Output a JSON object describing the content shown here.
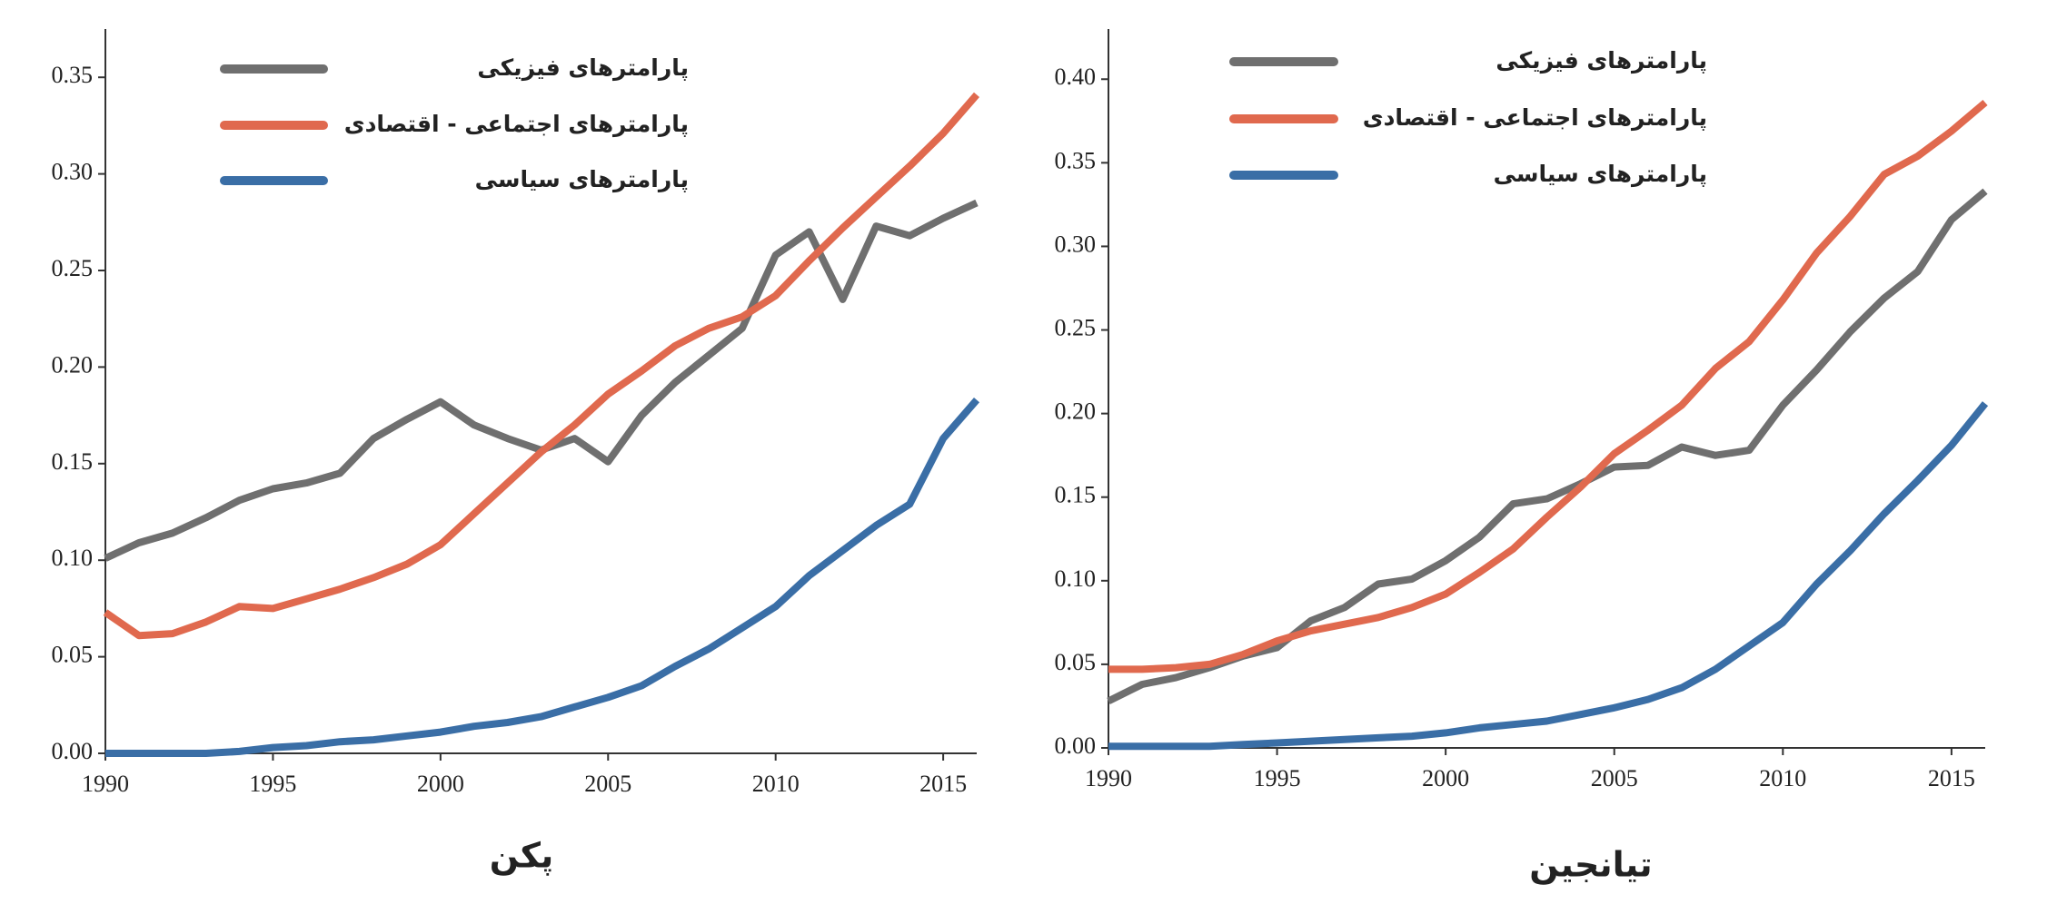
{
  "chart_data": [
    {
      "type": "line",
      "title": "پکن",
      "x": [
        1990,
        1991,
        1992,
        1993,
        1994,
        1995,
        1996,
        1997,
        1998,
        1999,
        2000,
        2001,
        2002,
        2003,
        2004,
        2005,
        2006,
        2007,
        2008,
        2009,
        2010,
        2011,
        2012,
        2013,
        2014,
        2015,
        2016
      ],
      "xlim": [
        1990,
        2016
      ],
      "xticks": [
        1990,
        1995,
        2000,
        2005,
        2010,
        2015
      ],
      "ylim": [
        0,
        0.375
      ],
      "yticks": [
        {
          "value": 0,
          "label": "0.00"
        },
        {
          "value": 0.05,
          "label": "0.05"
        },
        {
          "value": 0.1,
          "label": "0.10"
        },
        {
          "value": 0.15,
          "label": "0.15"
        },
        {
          "value": 0.2,
          "label": "0.20"
        },
        {
          "value": 0.25,
          "label": "0.25"
        },
        {
          "value": 0.3,
          "label": "0.30"
        },
        {
          "value": 0.35,
          "label": "0.35"
        }
      ],
      "legend": "upper left",
      "series": [
        {
          "name": "پارامترهای فیزیکی",
          "color": "#6f6f6f",
          "values": [
            0.101,
            0.109,
            0.114,
            0.122,
            0.131,
            0.137,
            0.14,
            0.145,
            0.163,
            0.173,
            0.182,
            0.17,
            0.163,
            0.157,
            0.163,
            0.151,
            0.175,
            0.192,
            0.206,
            0.22,
            0.258,
            0.27,
            0.235,
            0.273,
            0.268,
            0.277,
            0.285
          ]
        },
        {
          "name": "پارامترهای اجتماعی - اقتصادی",
          "color": "#e0694e",
          "values": [
            0.073,
            0.061,
            0.062,
            0.068,
            0.076,
            0.075,
            0.08,
            0.085,
            0.091,
            0.098,
            0.108,
            0.124,
            0.14,
            0.156,
            0.17,
            0.186,
            0.198,
            0.211,
            0.22,
            0.226,
            0.237,
            0.255,
            0.272,
            0.288,
            0.304,
            0.321,
            0.341
          ]
        },
        {
          "name": "پارامترهای سیاسی",
          "color": "#3a6ea6",
          "values": [
            0,
            0,
            0,
            0,
            0.001,
            0.003,
            0.004,
            0.006,
            0.007,
            0.009,
            0.011,
            0.014,
            0.016,
            0.019,
            0.024,
            0.029,
            0.035,
            0.045,
            0.054,
            0.065,
            0.076,
            0.092,
            0.105,
            0.118,
            0.129,
            0.163,
            0.183
          ]
        }
      ]
    },
    {
      "type": "line",
      "title": "تیانجین",
      "x": [
        1990,
        1991,
        1992,
        1993,
        1994,
        1995,
        1996,
        1997,
        1998,
        1999,
        2000,
        2001,
        2002,
        2003,
        2004,
        2005,
        2006,
        2007,
        2008,
        2009,
        2010,
        2011,
        2012,
        2013,
        2014,
        2015,
        2016
      ],
      "xlim": [
        1990,
        2016
      ],
      "xticks": [
        1990,
        1995,
        2000,
        2005,
        2010,
        2015
      ],
      "ylim": [
        0,
        0.43
      ],
      "yticks": [
        {
          "value": 0,
          "label": "0.00"
        },
        {
          "value": 0.05,
          "label": "0.05"
        },
        {
          "value": 0.1,
          "label": "0.10"
        },
        {
          "value": 0.15,
          "label": "0.15"
        },
        {
          "value": 0.2,
          "label": "0.20"
        },
        {
          "value": 0.25,
          "label": "0.25"
        },
        {
          "value": 0.3,
          "label": "0.30"
        },
        {
          "value": 0.35,
          "label": "0.35"
        },
        {
          "value": 0.4,
          "label": "0.40"
        }
      ],
      "legend": "upper left",
      "series": [
        {
          "name": "پارامترهای فیزیکی",
          "color": "#6f6f6f",
          "values": [
            0.028,
            0.038,
            0.042,
            0.048,
            0.055,
            0.06,
            0.076,
            0.084,
            0.098,
            0.101,
            0.112,
            0.126,
            0.146,
            0.149,
            0.158,
            0.168,
            0.169,
            0.18,
            0.175,
            0.178,
            0.205,
            0.226,
            0.249,
            0.269,
            0.285,
            0.316,
            0.333
          ]
        },
        {
          "name": "پارامترهای اجتماعی - اقتصادی",
          "color": "#e0694e",
          "values": [
            0.047,
            0.047,
            0.048,
            0.05,
            0.056,
            0.064,
            0.07,
            0.074,
            0.078,
            0.084,
            0.092,
            0.105,
            0.119,
            0.138,
            0.156,
            0.176,
            0.19,
            0.205,
            0.227,
            0.243,
            0.268,
            0.296,
            0.318,
            0.343,
            0.354,
            0.369,
            0.386
          ]
        },
        {
          "name": "پارامترهای سیاسی",
          "color": "#3a6ea6",
          "values": [
            0.001,
            0.001,
            0.001,
            0.001,
            0.002,
            0.003,
            0.004,
            0.005,
            0.006,
            0.007,
            0.009,
            0.012,
            0.014,
            0.016,
            0.02,
            0.024,
            0.029,
            0.036,
            0.047,
            0.061,
            0.075,
            0.098,
            0.118,
            0.14,
            0.16,
            0.181,
            0.206
          ]
        }
      ]
    }
  ]
}
